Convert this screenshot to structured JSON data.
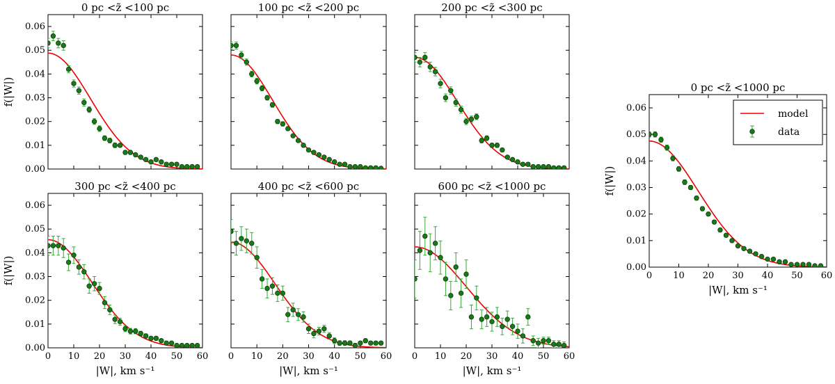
{
  "figure": {
    "y_label": "f(|W|)",
    "x_label": "|W|, km s⁻¹",
    "x_ticks": [
      "0",
      "10",
      "20",
      "30",
      "40",
      "50",
      "60"
    ],
    "y_ticks": [
      "0.00",
      "0.01",
      "0.02",
      "0.03",
      "0.04",
      "0.05",
      "0.06"
    ],
    "legend": {
      "model": "model",
      "data": "data"
    },
    "colors": {
      "model": "#ee0000",
      "data": "#1a7a1a",
      "errorbar": "#33aa33"
    }
  },
  "chart_data": [
    {
      "type": "scatter",
      "title": "0 pc <z̃ <100 pc",
      "xlim": [
        0,
        60
      ],
      "ylim": [
        0,
        0.065
      ],
      "model_sigma": 16.5,
      "model_amp": 0.0488,
      "x": [
        0,
        2,
        4,
        6,
        8,
        10,
        12,
        14,
        16,
        18,
        20,
        22,
        24,
        26,
        28,
        30,
        32,
        34,
        36,
        38,
        40,
        42,
        44,
        46,
        48,
        50,
        52,
        54,
        56,
        58
      ],
      "y": [
        0.053,
        0.056,
        0.053,
        0.052,
        0.042,
        0.036,
        0.033,
        0.028,
        0.025,
        0.02,
        0.017,
        0.013,
        0.012,
        0.01,
        0.01,
        0.007,
        0.007,
        0.006,
        0.005,
        0.004,
        0.003,
        0.004,
        0.003,
        0.002,
        0.002,
        0.002,
        0.001,
        0.001,
        0.001,
        0.001
      ],
      "err": [
        0.002,
        0.002,
        0.002,
        0.002,
        0.0015,
        0.0015,
        0.0015,
        0.0015,
        0.0012,
        0.0012,
        0.0012,
        0.001,
        0.001,
        0.001,
        0.0008,
        0.0008,
        0.0008,
        0.0007,
        0.0006,
        0.0006,
        0.0005,
        0.0005,
        0.0004,
        0.0004,
        0.0004,
        0.0004,
        0.0003,
        0.0003,
        0.0003,
        0.0003
      ]
    },
    {
      "type": "scatter",
      "title": "100 pc <z̃ <200 pc",
      "xlim": [
        0,
        60
      ],
      "ylim": [
        0,
        0.065
      ],
      "model_sigma": 16.0,
      "model_amp": 0.048,
      "x": [
        0,
        2,
        4,
        6,
        8,
        10,
        12,
        14,
        16,
        18,
        20,
        22,
        24,
        26,
        28,
        30,
        32,
        34,
        36,
        38,
        40,
        42,
        44,
        46,
        48,
        50,
        52,
        54,
        56,
        58
      ],
      "y": [
        0.052,
        0.052,
        0.048,
        0.045,
        0.04,
        0.037,
        0.034,
        0.03,
        0.027,
        0.02,
        0.019,
        0.017,
        0.014,
        0.012,
        0.01,
        0.008,
        0.007,
        0.006,
        0.005,
        0.004,
        0.003,
        0.002,
        0.002,
        0.001,
        0.001,
        0.001,
        0.0005,
        0.0005,
        0.0005,
        0.0003
      ],
      "err": [
        0.0015,
        0.0015,
        0.0015,
        0.0013,
        0.0012,
        0.0012,
        0.0011,
        0.001,
        0.001,
        0.0009,
        0.0009,
        0.0008,
        0.0007,
        0.0007,
        0.0006,
        0.0006,
        0.0005,
        0.0005,
        0.0004,
        0.0004,
        0.0004,
        0.0003,
        0.0003,
        0.0003,
        0.0003,
        0.0003,
        0.0002,
        0.0002,
        0.0002,
        0.0002
      ]
    },
    {
      "type": "scatter",
      "title": "200 pc <z̃ <300 pc",
      "xlim": [
        0,
        60
      ],
      "ylim": [
        0,
        0.065
      ],
      "model_sigma": 16.5,
      "model_amp": 0.047,
      "x": [
        0,
        2,
        4,
        6,
        8,
        10,
        12,
        14,
        16,
        18,
        20,
        22,
        24,
        26,
        28,
        30,
        32,
        34,
        36,
        38,
        40,
        42,
        44,
        46,
        48,
        50,
        52,
        54,
        56,
        58
      ],
      "y": [
        0.047,
        0.045,
        0.047,
        0.043,
        0.041,
        0.036,
        0.03,
        0.033,
        0.028,
        0.025,
        0.02,
        0.021,
        0.022,
        0.012,
        0.013,
        0.01,
        0.01,
        0.008,
        0.005,
        0.004,
        0.003,
        0.002,
        0.002,
        0.001,
        0.001,
        0.001,
        0.001,
        0.0005,
        0.0005,
        0.0005
      ],
      "err": [
        0.002,
        0.002,
        0.002,
        0.002,
        0.0018,
        0.0018,
        0.0016,
        0.0016,
        0.0015,
        0.0015,
        0.0013,
        0.0013,
        0.0012,
        0.001,
        0.001,
        0.0009,
        0.0009,
        0.0008,
        0.0007,
        0.0006,
        0.0005,
        0.0005,
        0.0004,
        0.0004,
        0.0004,
        0.0003,
        0.0003,
        0.0003,
        0.0003,
        0.0003
      ]
    },
    {
      "type": "scatter",
      "title": "300 pc <z̃ <400 pc",
      "xlim": [
        0,
        60
      ],
      "ylim": [
        0,
        0.065
      ],
      "model_sigma": 17.0,
      "model_amp": 0.0455,
      "x": [
        0,
        2,
        4,
        6,
        8,
        10,
        12,
        14,
        16,
        18,
        20,
        22,
        24,
        26,
        28,
        30,
        32,
        34,
        36,
        38,
        40,
        42,
        44,
        46,
        48,
        50,
        52,
        54,
        56,
        58
      ],
      "y": [
        0.043,
        0.043,
        0.043,
        0.042,
        0.036,
        0.039,
        0.034,
        0.032,
        0.026,
        0.027,
        0.025,
        0.019,
        0.016,
        0.012,
        0.011,
        0.008,
        0.007,
        0.007,
        0.006,
        0.005,
        0.004,
        0.004,
        0.003,
        0.002,
        0.002,
        0.001,
        0.001,
        0.001,
        0.001,
        0.001
      ],
      "err": [
        0.004,
        0.004,
        0.004,
        0.004,
        0.0035,
        0.0035,
        0.003,
        0.003,
        0.003,
        0.003,
        0.0025,
        0.0025,
        0.002,
        0.0018,
        0.0015,
        0.0012,
        0.0012,
        0.0011,
        0.001,
        0.0009,
        0.0008,
        0.0008,
        0.0007,
        0.0006,
        0.0006,
        0.0005,
        0.0005,
        0.0005,
        0.0005,
        0.0005
      ]
    },
    {
      "type": "scatter",
      "title": "400 pc <z̃ <600 pc",
      "xlim": [
        0,
        60
      ],
      "ylim": [
        0,
        0.065
      ],
      "model_sigma": 17.0,
      "model_amp": 0.0445,
      "x": [
        0,
        2,
        4,
        6,
        8,
        10,
        12,
        14,
        16,
        18,
        20,
        22,
        24,
        26,
        28,
        30,
        32,
        34,
        36,
        38,
        40,
        42,
        44,
        46,
        48,
        50,
        52,
        54,
        56,
        58
      ],
      "y": [
        0.049,
        0.044,
        0.046,
        0.045,
        0.044,
        0.038,
        0.029,
        0.025,
        0.026,
        0.023,
        0.023,
        0.014,
        0.016,
        0.014,
        0.013,
        0.008,
        0.006,
        0.007,
        0.008,
        0.005,
        0.003,
        0.002,
        0.002,
        0.002,
        0.001,
        0.002,
        0.003,
        0.002,
        0.002,
        0.002
      ],
      "err": [
        0.005,
        0.005,
        0.005,
        0.005,
        0.0045,
        0.0045,
        0.004,
        0.004,
        0.0035,
        0.0035,
        0.003,
        0.003,
        0.0028,
        0.0025,
        0.0022,
        0.002,
        0.0018,
        0.0016,
        0.0015,
        0.0014,
        0.0012,
        0.001,
        0.001,
        0.0009,
        0.0009,
        0.0008,
        0.0008,
        0.0008,
        0.0008,
        0.0008
      ]
    },
    {
      "type": "scatter",
      "title": "600 pc <z̃ <1000 pc",
      "xlim": [
        0,
        60
      ],
      "ylim": [
        0,
        0.065
      ],
      "model_sigma": 20.0,
      "model_amp": 0.0425,
      "x": [
        0,
        2,
        4,
        6,
        8,
        10,
        12,
        14,
        16,
        18,
        20,
        22,
        24,
        26,
        28,
        30,
        32,
        34,
        36,
        38,
        40,
        42,
        44,
        46,
        48,
        50,
        52,
        54,
        56,
        58
      ],
      "y": [
        0.029,
        0.041,
        0.047,
        0.04,
        0.044,
        0.038,
        0.029,
        0.022,
        0.034,
        0.023,
        0.031,
        0.013,
        0.021,
        0.012,
        0.013,
        0.011,
        0.013,
        0.009,
        0.012,
        0.009,
        0.007,
        0.005,
        0.013,
        0.003,
        0.002,
        0.003,
        0.003,
        0.0015,
        0.0015,
        0.001
      ],
      "err": [
        0.008,
        0.008,
        0.008,
        0.008,
        0.007,
        0.007,
        0.007,
        0.006,
        0.006,
        0.006,
        0.006,
        0.005,
        0.005,
        0.004,
        0.004,
        0.004,
        0.004,
        0.0035,
        0.0035,
        0.0035,
        0.003,
        0.003,
        0.0035,
        0.002,
        0.002,
        0.0015,
        0.0015,
        0.0015,
        0.0015,
        0.0015
      ]
    },
    {
      "type": "scatter",
      "title": "0 pc <z̃ <1000 pc",
      "xlim": [
        0,
        60
      ],
      "ylim": [
        0,
        0.065
      ],
      "model_sigma": 16.5,
      "model_amp": 0.0475,
      "x": [
        0,
        2,
        4,
        6,
        8,
        10,
        12,
        14,
        16,
        18,
        20,
        22,
        24,
        26,
        28,
        30,
        32,
        34,
        36,
        38,
        40,
        42,
        44,
        46,
        48,
        50,
        52,
        54,
        56,
        58
      ],
      "y": [
        0.05,
        0.05,
        0.048,
        0.045,
        0.041,
        0.037,
        0.032,
        0.03,
        0.026,
        0.022,
        0.02,
        0.017,
        0.014,
        0.012,
        0.01,
        0.008,
        0.007,
        0.006,
        0.005,
        0.004,
        0.003,
        0.003,
        0.002,
        0.002,
        0.001,
        0.001,
        0.001,
        0.001,
        0.0005,
        0.0005
      ],
      "err": [
        0.001,
        0.001,
        0.001,
        0.001,
        0.001,
        0.0009,
        0.0009,
        0.0008,
        0.0008,
        0.0008,
        0.0007,
        0.0007,
        0.0006,
        0.0006,
        0.0005,
        0.0005,
        0.0005,
        0.0004,
        0.0004,
        0.0004,
        0.0003,
        0.0003,
        0.0003,
        0.0003,
        0.0002,
        0.0002,
        0.0002,
        0.0002,
        0.0002,
        0.0002
      ]
    }
  ]
}
